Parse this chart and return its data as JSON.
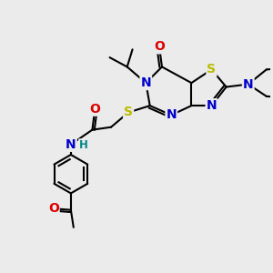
{
  "bg_color": "#ebebeb",
  "atom_colors": {
    "C": "#000000",
    "N": "#0000cc",
    "O": "#dd0000",
    "S": "#bbbb00",
    "H": "#008888"
  },
  "bond_color": "#000000",
  "bond_lw": 1.5,
  "font_size": 10,
  "font_size_small": 8.5
}
